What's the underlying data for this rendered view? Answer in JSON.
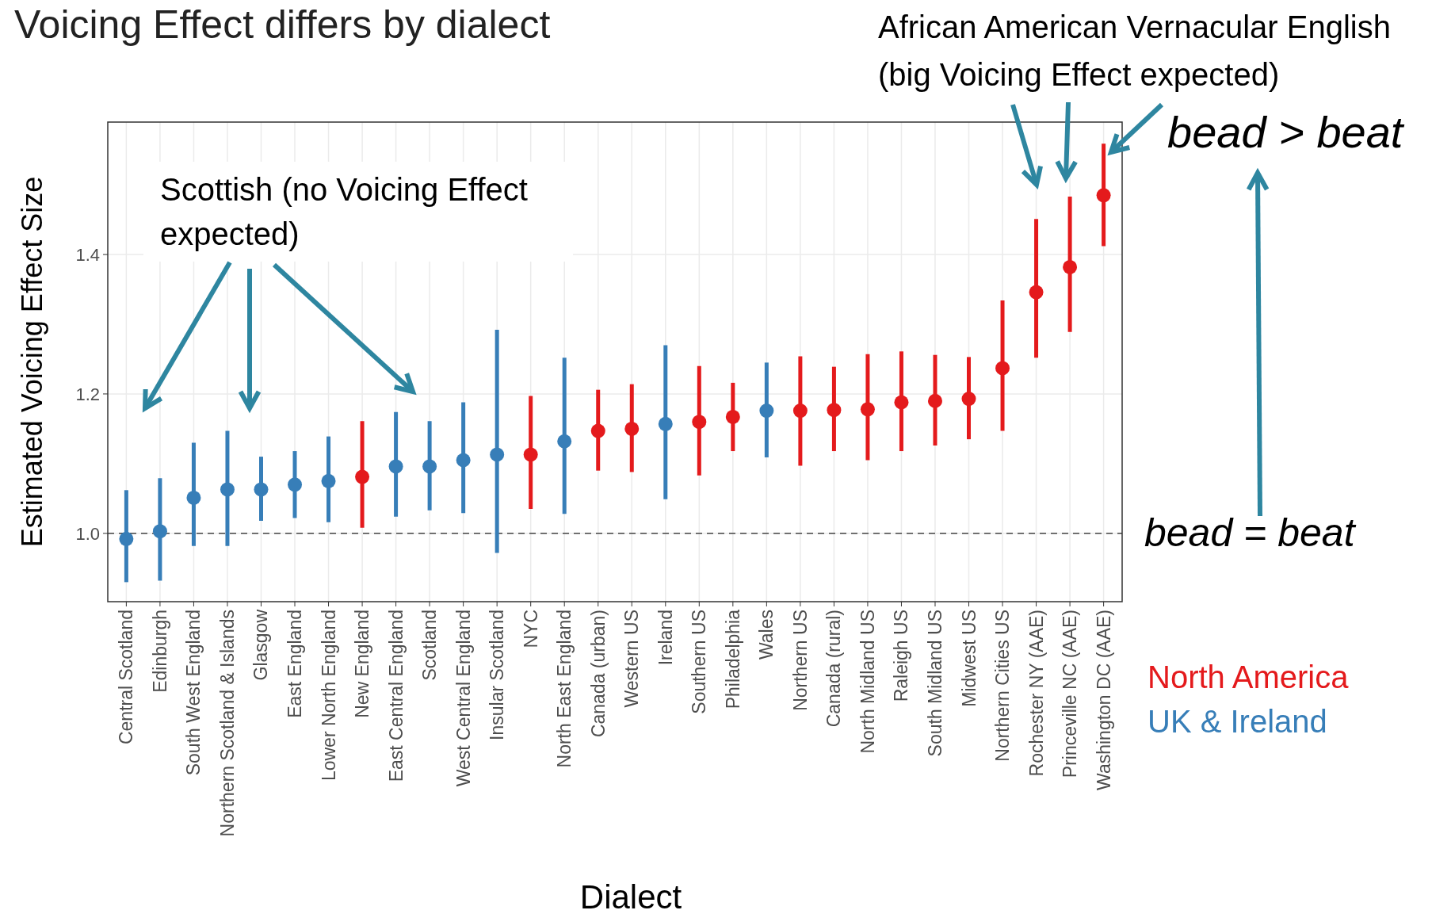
{
  "chart_data": {
    "type": "scatter",
    "title": "Voicing Effect differs by dialect",
    "xlabel": "Dialect",
    "ylabel": "Estimated Voicing Effect Size",
    "categories": [
      "Central Scotland",
      "Edinburgh",
      "South West England",
      "Northern Scotland & Islands",
      "Glasgow",
      "East England",
      "Lower North England",
      "New England",
      "East Central England",
      "Scotland",
      "West Central England",
      "Insular Scotland",
      "NYC",
      "North East England",
      "Canada (urban)",
      "Western US",
      "Ireland",
      "Southern US",
      "Philadelphia",
      "Wales",
      "Northern US",
      "Canada (rural)",
      "North Midland US",
      "Raleigh US",
      "South Midland US",
      "Midwest US",
      "Northern Cities US",
      "Rochester NY (AAE)",
      "Princeville NC (AAE)",
      "Washington DC (AAE)"
    ],
    "series": [
      {
        "name": "North America",
        "color": "#e41a1c",
        "values": [
          null,
          null,
          null,
          null,
          null,
          null,
          null,
          1.081,
          null,
          null,
          null,
          null,
          1.113,
          null,
          1.147,
          1.15,
          null,
          1.16,
          1.167,
          null,
          1.176,
          1.177,
          1.178,
          1.188,
          1.19,
          1.193,
          1.237,
          1.346,
          1.382,
          1.485
        ],
        "errors": [
          null,
          null,
          null,
          null,
          null,
          null,
          null,
          [
            1.008,
            1.161
          ],
          null,
          null,
          null,
          null,
          [
            1.035,
            1.197
          ],
          null,
          [
            1.09,
            1.206
          ],
          [
            1.088,
            1.214
          ],
          null,
          [
            1.083,
            1.24
          ],
          [
            1.118,
            1.216
          ],
          null,
          [
            1.097,
            1.254
          ],
          [
            1.118,
            1.239
          ],
          [
            1.105,
            1.257
          ],
          [
            1.118,
            1.261
          ],
          [
            1.126,
            1.256
          ],
          [
            1.135,
            1.253
          ],
          [
            1.147,
            1.334
          ],
          [
            1.252,
            1.451
          ],
          [
            1.289,
            1.483
          ],
          [
            1.412,
            1.559
          ]
        ]
      },
      {
        "name": "UK & Ireland",
        "color": "#377eb8",
        "values": [
          0.992,
          1.003,
          1.051,
          1.063,
          1.063,
          1.07,
          1.075,
          null,
          1.096,
          1.096,
          1.105,
          1.113,
          null,
          1.132,
          null,
          null,
          1.157,
          null,
          null,
          1.176,
          null,
          null,
          null,
          null,
          null,
          null,
          null,
          null,
          null,
          null
        ],
        "errors": [
          [
            0.93,
            1.062
          ],
          [
            0.932,
            1.079
          ],
          [
            0.982,
            1.13
          ],
          [
            0.982,
            1.147
          ],
          [
            1.018,
            1.11
          ],
          [
            1.022,
            1.118
          ],
          [
            1.016,
            1.139
          ],
          null,
          [
            1.024,
            1.174
          ],
          [
            1.033,
            1.161
          ],
          [
            1.029,
            1.188
          ],
          [
            0.972,
            1.292
          ],
          null,
          [
            1.028,
            1.252
          ],
          null,
          null,
          [
            1.049,
            1.27
          ],
          null,
          null,
          [
            1.109,
            1.245
          ],
          null,
          null,
          null,
          null,
          null,
          null,
          null,
          null,
          null,
          null
        ]
      }
    ],
    "ylim": [
      0.902,
      1.59
    ],
    "yticks": [
      {
        "value": 1,
        "label": "1.0"
      },
      {
        "value": 1.2,
        "label": "1.2"
      },
      {
        "value": 1.4,
        "label": "1.4"
      }
    ],
    "grid": true,
    "marker": "circle",
    "legend": "right",
    "ref_lines": [
      {
        "axis": "y",
        "value": 1.0,
        "label": "bead = beat",
        "color": "#444444",
        "line_style": "dashed"
      }
    ],
    "annotations": [
      "Scottish (no Voicing Effect expected)",
      "African American Vernacular English (big Voicing Effect expected)",
      "bead > beat"
    ]
  }
}
